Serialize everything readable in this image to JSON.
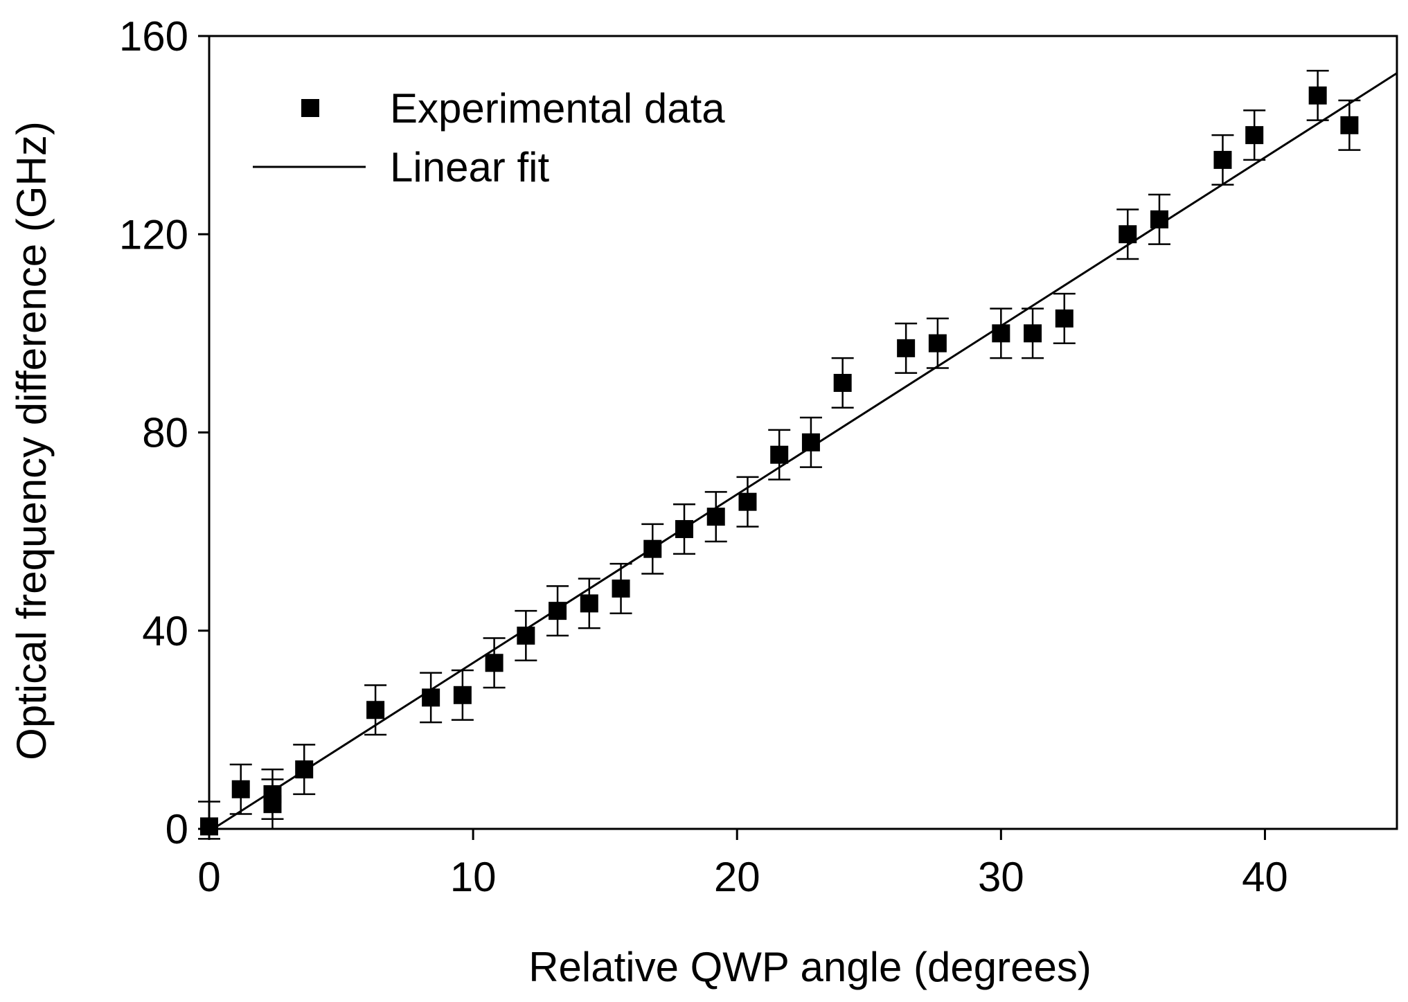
{
  "chart_data": {
    "type": "scatter",
    "title": "",
    "xlabel": "Relative QWP angle (degrees)",
    "ylabel": "Optical frequency difference (GHz)",
    "xlim": [
      0,
      45
    ],
    "ylim": [
      0,
      160
    ],
    "x_ticks": [
      0,
      10,
      20,
      30,
      40
    ],
    "y_ticks": [
      0,
      40,
      80,
      120,
      160
    ],
    "x_tick_labels": [
      "0",
      "10",
      "20",
      "30",
      "40"
    ],
    "y_tick_labels": [
      "0",
      "40",
      "80",
      "120",
      "160"
    ],
    "grid": false,
    "legend_position": "top-left",
    "legend": {
      "data_label": "Experimental data",
      "fit_label": "Linear fit"
    },
    "series": [
      {
        "name": "Experimental data",
        "kind": "points-with-error-bars",
        "error": 5,
        "x": [
          0.0,
          1.2,
          2.4,
          2.4,
          3.6,
          6.3,
          8.4,
          9.6,
          10.8,
          12.0,
          13.2,
          14.4,
          15.6,
          16.8,
          18.0,
          19.2,
          20.4,
          21.6,
          22.8,
          24.0,
          26.4,
          27.6,
          30.0,
          31.2,
          32.4,
          34.8,
          36.0,
          38.4,
          39.6,
          42.0,
          43.2
        ],
        "y": [
          0.5,
          8,
          7,
          5,
          12,
          24,
          26.5,
          27,
          33.5,
          39,
          44,
          45.5,
          48.5,
          56.5,
          60.5,
          63,
          66,
          75.5,
          78,
          90,
          97,
          98,
          100,
          100,
          103,
          120,
          123,
          135,
          140,
          148,
          142
        ]
      },
      {
        "name": "Linear fit",
        "kind": "line",
        "slope": 3.4,
        "intercept": -0.5,
        "x_range": [
          0,
          45
        ]
      }
    ]
  }
}
